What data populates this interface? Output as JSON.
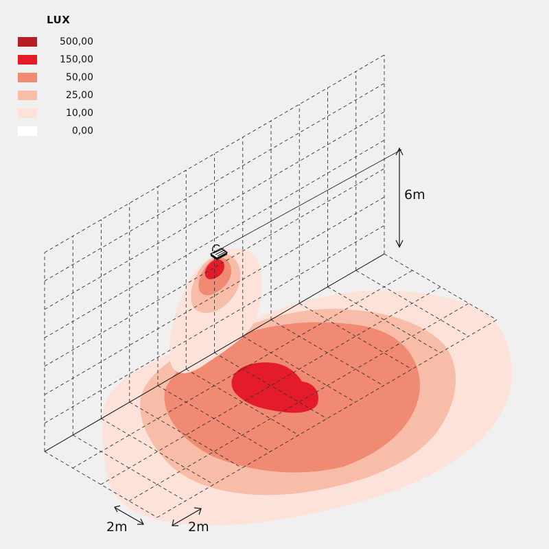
{
  "legend": {
    "title": "LUX",
    "items": [
      {
        "value": "500,00",
        "color": "#b51f24"
      },
      {
        "value": "150,00",
        "color": "#e31b2b"
      },
      {
        "value": "50,00",
        "color": "#f08a73"
      },
      {
        "value": "25,00",
        "color": "#f8bda8"
      },
      {
        "value": "10,00",
        "color": "#fde2da"
      },
      {
        "value": "0,00",
        "color": "#ffffff"
      }
    ]
  },
  "dimensions": {
    "height_label": "6m",
    "depth_label": "2m",
    "width_label": "2m"
  }
}
